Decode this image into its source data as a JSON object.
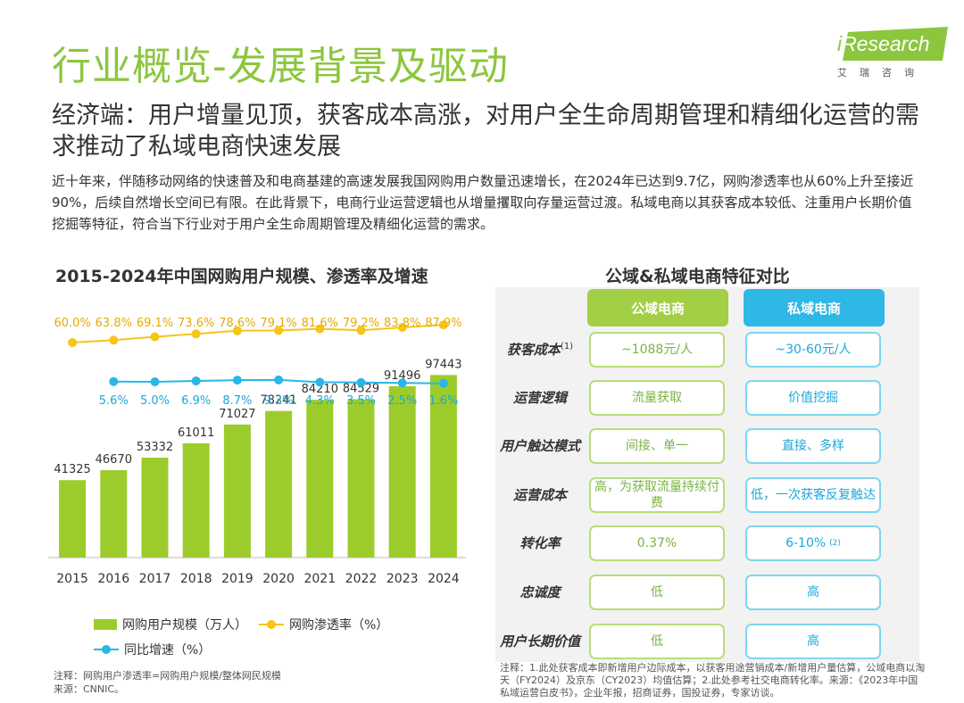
{
  "header": {
    "title": "行业概览-发展背景及驱动",
    "subtitle": "经济端：用户增量见顶，获客成本高涨，对用户全生命周期管理和精细化运营的需求推动了私域电商快速发展",
    "intro": "近十年来，伴随移动网络的快速普及和电商基建的高速发展我国网购用户数量迅速增长，在2024年已达到9.7亿，网购渗透率也从60%上升至接近90%，后续自然增长空间已有限。在此背景下，电商行业运营逻辑也从增量攫取向存量运营过渡。私域电商以其获客成本较低、注重用户长期价值挖掘等特征，符合当下行业对于用户全生命周期管理及精细化运营的需求。"
  },
  "logo": {
    "i": "i",
    "brand": "Research",
    "sub": "艾瑞咨询"
  },
  "colors": {
    "green": "#9ccc2b",
    "yellow": "#f5c518",
    "blue": "#29b6e8",
    "title": "#8cc63f"
  },
  "chart_data": {
    "type": "bar",
    "title": "2015-2024年中国网购用户规模、渗透率及增速",
    "categories": [
      "2015",
      "2016",
      "2017",
      "2018",
      "2019",
      "2020",
      "2021",
      "2022",
      "2023",
      "2024"
    ],
    "series": [
      {
        "name": "网购用户规模（万人）",
        "kind": "bar",
        "values": [
          41325,
          46670,
          53332,
          61011,
          71027,
          78241,
          84210,
          84529,
          91496,
          97443
        ]
      },
      {
        "name": "网购渗透率（%）",
        "kind": "line",
        "values": [
          60.0,
          63.8,
          69.1,
          73.6,
          78.6,
          79.1,
          81.6,
          79.2,
          83.8,
          87.9
        ],
        "labels": [
          "60.0%",
          "63.8%",
          "69.1%",
          "73.6%",
          "78.6%",
          "79.1%",
          "81.6%",
          "79.2%",
          "83.8%",
          "87.9%"
        ]
      },
      {
        "name": "同比增速（%）",
        "kind": "line",
        "values": [
          null,
          5.6,
          5.0,
          6.9,
          8.7,
          9.3,
          4.3,
          3.5,
          2.5,
          1.6
        ],
        "labels": [
          "",
          "5.6%",
          "5.0%",
          "6.9%",
          "8.7%",
          "9.3%",
          "4.3%",
          "3.5%",
          "2.5%",
          "1.6%"
        ]
      }
    ],
    "legend": [
      "网购用户规模（万人）",
      "网购渗透率（%）",
      "同比增速（%）"
    ],
    "ylim": [
      0,
      100000
    ]
  },
  "chart_note": {
    "line1": "注释：网购用户渗透率=网购用户规模/整体网民规模",
    "line2": "来源：CNNIC。"
  },
  "table": {
    "title": "公域&私域电商特征对比",
    "headers": {
      "public": "公域电商",
      "private": "私域电商"
    },
    "rows": [
      {
        "label": "获客成本",
        "sup": "(1)",
        "public": "~1088元/人",
        "private": "~30-60元/人"
      },
      {
        "label": "运营逻辑",
        "public": "流量获取",
        "private": "价值挖掘"
      },
      {
        "label": "用户触达模式",
        "public": "间接、单一",
        "private": "直接、多样"
      },
      {
        "label": "运营成本",
        "public": "高，为获取流量持续付费",
        "private": "低，一次获客反复触达"
      },
      {
        "label": "转化率",
        "public": "0.37%",
        "private": "6-10%",
        "private_sup": "(2)"
      },
      {
        "label": "忠诚度",
        "public": "低",
        "private": "高"
      },
      {
        "label": "用户长期价值",
        "public": "低",
        "private": "高"
      }
    ],
    "note": "注释：1.此处获客成本即新增用户边际成本，以获客用途营销成本/新增用户量估算，公域电商以淘天（FY2024）及京东（CY2023）均值估算；2.此处参考社交电商转化率。来源：《2023年中国私域运营白皮书》，企业年报，招商证券，国投证券，专家访谈。"
  }
}
